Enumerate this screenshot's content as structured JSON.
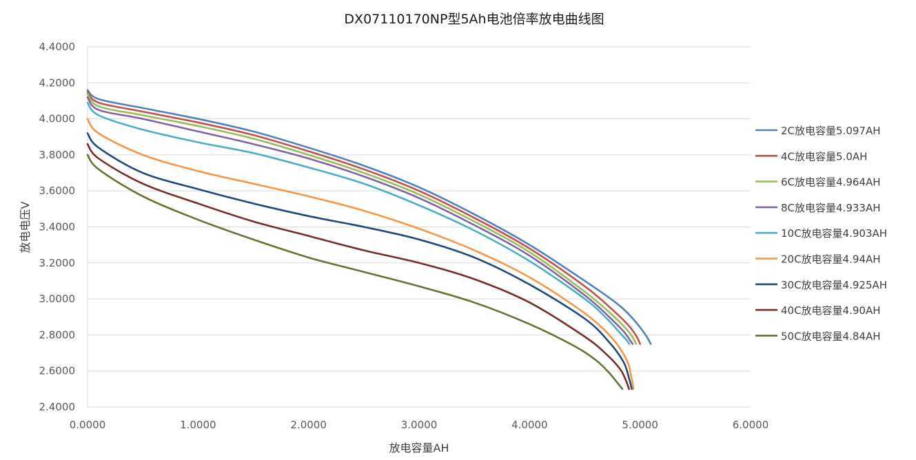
{
  "chart_data": {
    "type": "line",
    "title": "DX07110170NP型5Ah电池倍率放电曲线图",
    "xlabel": "放电容量AH",
    "ylabel": "放电电压V",
    "xlim": [
      0,
      6
    ],
    "ylim": [
      2.4,
      4.4
    ],
    "x_ticks": [
      "0.0000",
      "1.0000",
      "2.0000",
      "3.0000",
      "4.0000",
      "5.0000",
      "6.0000"
    ],
    "y_ticks": [
      "2.4000",
      "2.6000",
      "2.8000",
      "3.0000",
      "3.2000",
      "3.4000",
      "3.6000",
      "3.8000",
      "4.0000",
      "4.2000",
      "4.4000"
    ],
    "grid": "horizontal",
    "legend_position": "right",
    "series": [
      {
        "name": "2C放电容量5.097AH",
        "color": "#4f81bd",
        "x": [
          0,
          0.1,
          0.5,
          1.0,
          1.5,
          2.0,
          2.5,
          3.0,
          3.5,
          4.0,
          4.5,
          4.8,
          4.95,
          5.05,
          5.097
        ],
        "y": [
          4.16,
          4.11,
          4.06,
          4.0,
          3.93,
          3.84,
          3.74,
          3.62,
          3.47,
          3.3,
          3.1,
          2.97,
          2.88,
          2.8,
          2.75
        ]
      },
      {
        "name": "4C放电容量5.0AH",
        "color": "#c0504d",
        "x": [
          0,
          0.1,
          0.5,
          1.0,
          1.5,
          2.0,
          2.5,
          3.0,
          3.5,
          4.0,
          4.5,
          4.75,
          4.9,
          4.97,
          5.0
        ],
        "y": [
          4.15,
          4.09,
          4.04,
          3.98,
          3.91,
          3.82,
          3.72,
          3.6,
          3.45,
          3.28,
          3.07,
          2.94,
          2.85,
          2.79,
          2.75
        ]
      },
      {
        "name": "6C放电容量4.964AH",
        "color": "#9bbb59",
        "x": [
          0,
          0.1,
          0.5,
          1.0,
          1.5,
          2.0,
          2.5,
          3.0,
          3.5,
          4.0,
          4.5,
          4.75,
          4.88,
          4.94,
          4.964
        ],
        "y": [
          4.14,
          4.07,
          4.02,
          3.96,
          3.89,
          3.8,
          3.7,
          3.58,
          3.43,
          3.26,
          3.04,
          2.91,
          2.83,
          2.78,
          2.75
        ]
      },
      {
        "name": "8C放电容量4.933AH",
        "color": "#8064a2",
        "x": [
          0,
          0.1,
          0.5,
          1.0,
          1.5,
          2.0,
          2.5,
          3.0,
          3.5,
          4.0,
          4.5,
          4.72,
          4.85,
          4.91,
          4.933
        ],
        "y": [
          4.12,
          4.05,
          4.0,
          3.93,
          3.86,
          3.78,
          3.68,
          3.56,
          3.41,
          3.24,
          3.02,
          2.9,
          2.82,
          2.77,
          2.75
        ]
      },
      {
        "name": "10C放电容量4.903AH",
        "color": "#4bacc6",
        "x": [
          0,
          0.1,
          0.5,
          1.0,
          1.5,
          2.0,
          2.5,
          3.0,
          3.5,
          4.0,
          4.5,
          4.7,
          4.82,
          4.88,
          4.903
        ],
        "y": [
          4.09,
          4.02,
          3.94,
          3.87,
          3.81,
          3.73,
          3.64,
          3.52,
          3.38,
          3.21,
          3.0,
          2.89,
          2.81,
          2.77,
          2.75
        ]
      },
      {
        "name": "20C放电容量4.94AH",
        "color": "#f79646",
        "x": [
          0,
          0.1,
          0.5,
          1.0,
          1.5,
          2.0,
          2.5,
          3.0,
          3.5,
          4.0,
          4.5,
          4.75,
          4.88,
          4.92,
          4.94
        ],
        "y": [
          4.0,
          3.92,
          3.8,
          3.71,
          3.64,
          3.57,
          3.49,
          3.39,
          3.27,
          3.12,
          2.92,
          2.78,
          2.66,
          2.57,
          2.5
        ]
      },
      {
        "name": "30C放电容量4.925AH",
        "color": "#1f497d",
        "x": [
          0,
          0.1,
          0.5,
          1.0,
          1.5,
          2.0,
          2.5,
          3.0,
          3.5,
          4.0,
          4.5,
          4.72,
          4.85,
          4.9,
          4.925
        ],
        "y": [
          3.92,
          3.84,
          3.7,
          3.61,
          3.53,
          3.46,
          3.4,
          3.33,
          3.23,
          3.08,
          2.89,
          2.76,
          2.65,
          2.56,
          2.5
        ]
      },
      {
        "name": "40C放电容量4.90AH",
        "color": "#772c2a",
        "x": [
          0,
          0.1,
          0.5,
          1.0,
          1.5,
          2.0,
          2.5,
          3.0,
          3.5,
          4.0,
          4.5,
          4.7,
          4.82,
          4.87,
          4.9
        ],
        "y": [
          3.86,
          3.78,
          3.64,
          3.53,
          3.43,
          3.35,
          3.27,
          3.2,
          3.11,
          2.98,
          2.79,
          2.69,
          2.61,
          2.55,
          2.5
        ]
      },
      {
        "name": "50C放电容量4.84AH",
        "color": "#5f7530",
        "x": [
          0,
          0.1,
          0.5,
          1.0,
          1.5,
          2.0,
          2.5,
          3.0,
          3.5,
          4.0,
          4.4,
          4.6,
          4.72,
          4.8,
          4.84
        ],
        "y": [
          3.8,
          3.72,
          3.57,
          3.44,
          3.33,
          3.23,
          3.15,
          3.07,
          2.98,
          2.86,
          2.74,
          2.66,
          2.59,
          2.53,
          2.5
        ]
      }
    ]
  }
}
